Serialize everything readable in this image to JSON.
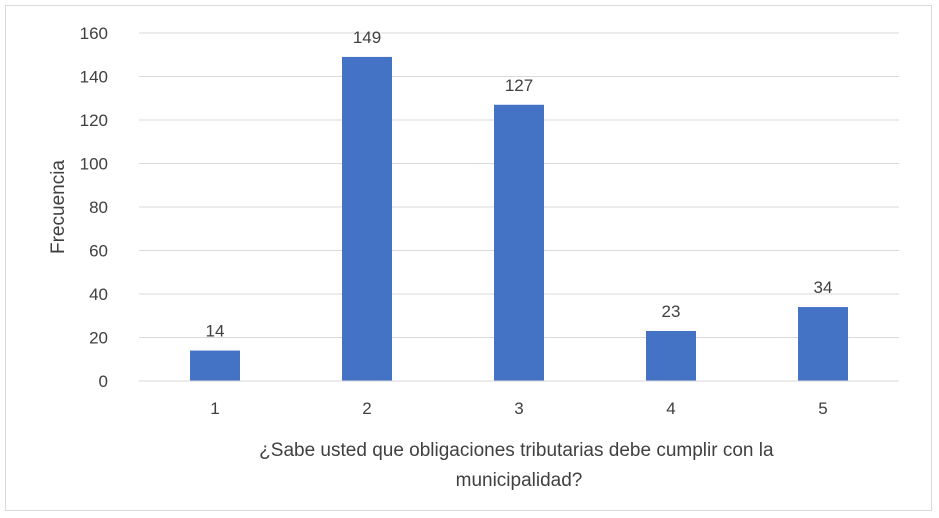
{
  "chart_data": {
    "type": "bar",
    "categories": [
      "1",
      "2",
      "3",
      "4",
      "5"
    ],
    "values": [
      14,
      149,
      127,
      23,
      34
    ],
    "data_labels": [
      "14",
      "149",
      "127",
      "23",
      "34"
    ],
    "title": "",
    "xlabel_lines": [
      "¿Sabe usted que obligaciones tributarias debe cumplir con la",
      "municipalidad?"
    ],
    "ylabel": "Frecuencia",
    "ylim": [
      0,
      160
    ],
    "yticks": [
      0,
      20,
      40,
      60,
      80,
      100,
      120,
      140,
      160
    ],
    "grid": true,
    "legend": "none",
    "colors": {
      "bar": "#4472c4",
      "grid": "#d9d9d9",
      "text": "#404040"
    }
  }
}
